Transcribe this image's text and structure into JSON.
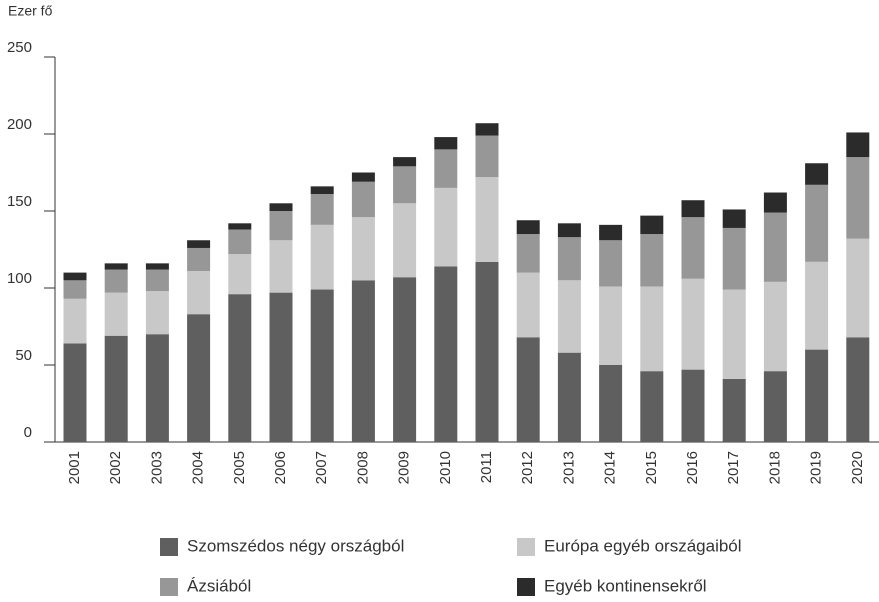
{
  "chart_data": {
    "type": "stacked_bar",
    "y_unit_label": "Ezer fő",
    "categories": [
      "2001",
      "2002",
      "2003",
      "2004",
      "2005",
      "2006",
      "2007",
      "2008",
      "2009",
      "2010",
      "2011",
      "2012",
      "2013",
      "2014",
      "2015",
      "2016",
      "2017",
      "2018",
      "2019",
      "2020"
    ],
    "series": [
      {
        "name": "Szomszédos négy országból",
        "color": "#5f5f5f",
        "values": [
          64,
          69,
          70,
          83,
          96,
          97,
          99,
          105,
          107,
          114,
          117,
          68,
          58,
          50,
          46,
          47,
          41,
          46,
          60,
          68
        ]
      },
      {
        "name": "Európa egyéb országaiból",
        "color": "#c8c8c8",
        "values": [
          29,
          28,
          28,
          28,
          26,
          34,
          42,
          41,
          48,
          51,
          55,
          42,
          47,
          51,
          55,
          59,
          58,
          58,
          57,
          64
        ]
      },
      {
        "name": "Ázsiából",
        "color": "#979797",
        "values": [
          12,
          15,
          14,
          15,
          16,
          19,
          20,
          23,
          24,
          25,
          27,
          25,
          28,
          30,
          34,
          40,
          40,
          45,
          50,
          53
        ]
      },
      {
        "name": "Egyéb kontinensekről",
        "color": "#2b2b2b",
        "values": [
          5,
          4,
          4,
          5,
          4,
          5,
          5,
          6,
          6,
          8,
          8,
          9,
          9,
          10,
          12,
          11,
          12,
          13,
          14,
          16
        ]
      }
    ],
    "ylim": [
      0,
      250
    ],
    "yticks": [
      0,
      50,
      100,
      150,
      200,
      250
    ]
  }
}
